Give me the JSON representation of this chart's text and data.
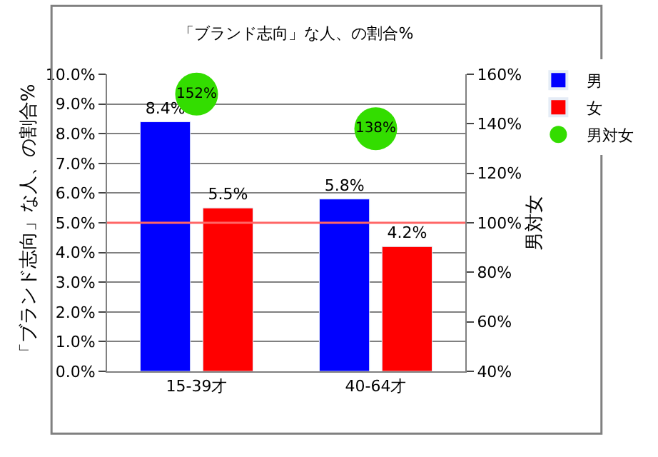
{
  "chart_data": {
    "type": "bar",
    "title": "「ブランド志向」な人、の割合%",
    "ylabel": "「ブランド志向」な人、の割合%",
    "y2label": "男対女",
    "categories": [
      "15-39才",
      "40-64才"
    ],
    "series": [
      {
        "name": "男",
        "color": "#0000ff",
        "values": [
          8.4,
          5.8
        ],
        "value_labels": [
          "8.4%",
          "5.8%"
        ]
      },
      {
        "name": "女",
        "color": "#ff0000",
        "values": [
          5.5,
          4.2
        ],
        "value_labels": [
          "5.5%",
          "4.2%"
        ]
      },
      {
        "name": "男対女",
        "type": "scatter",
        "axis": "y2",
        "color": "#33dd00",
        "values": [
          152,
          138
        ],
        "value_labels": [
          "152%",
          "138%"
        ]
      }
    ],
    "ylim": [
      0,
      10
    ],
    "yticks": [
      {
        "value": 0,
        "label": "0.0%"
      },
      {
        "value": 1,
        "label": "1.0%"
      },
      {
        "value": 2,
        "label": "2.0%"
      },
      {
        "value": 3,
        "label": "3.0%"
      },
      {
        "value": 4,
        "label": "4.0%"
      },
      {
        "value": 5,
        "label": "5.0%"
      },
      {
        "value": 6,
        "label": "6.0%"
      },
      {
        "value": 7,
        "label": "7.0%"
      },
      {
        "value": 8,
        "label": "8.0%"
      },
      {
        "value": 9,
        "label": "9.0%"
      },
      {
        "value": 10,
        "label": "10.0%"
      }
    ],
    "y2lim": [
      40,
      160
    ],
    "y2ticks": [
      {
        "value": 40,
        "label": "40%"
      },
      {
        "value": 60,
        "label": "60%"
      },
      {
        "value": 80,
        "label": "80%"
      },
      {
        "value": 100,
        "label": "100%"
      },
      {
        "value": 120,
        "label": "120%"
      },
      {
        "value": 140,
        "label": "140%"
      },
      {
        "value": 160,
        "label": "160%"
      }
    ],
    "ref_lines": [
      {
        "axis": "y2",
        "value": 100,
        "color": "#ff6666"
      }
    ],
    "grid": "y",
    "legend": "top right",
    "marker": "circle"
  }
}
